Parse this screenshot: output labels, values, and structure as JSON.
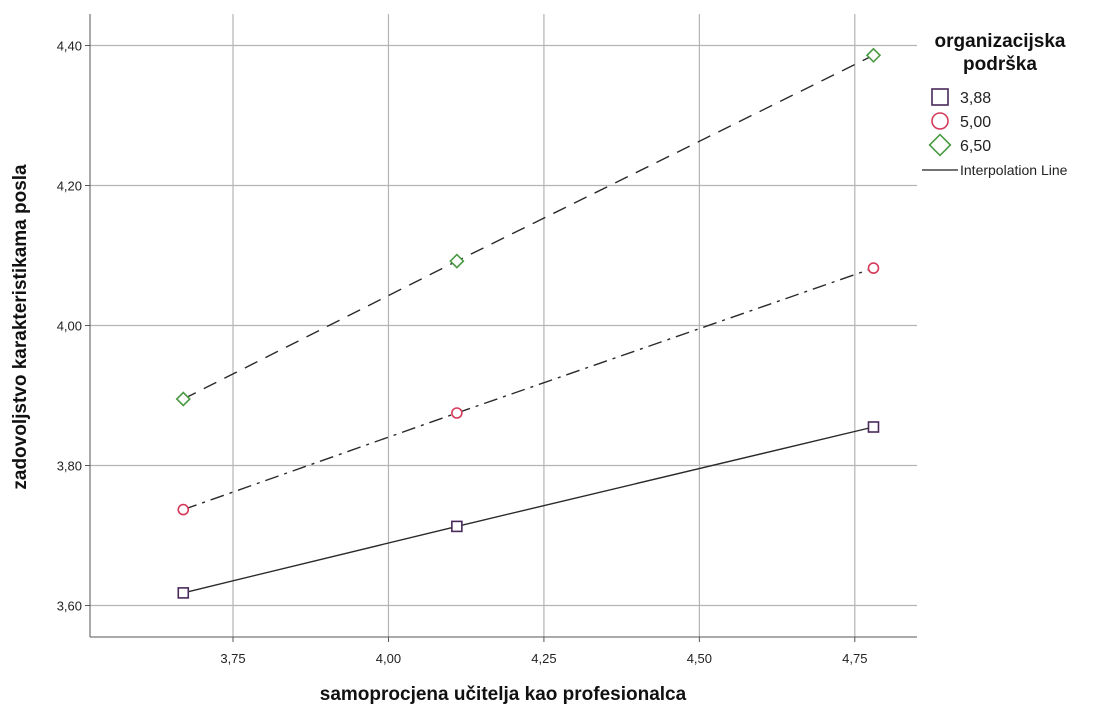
{
  "chart_data": {
    "type": "line",
    "xlabel": "samoprocjena učitelja kao profesionalca",
    "ylabel": "zadovoljstvo karakteristikama posla",
    "xlim": [
      3.52,
      4.85
    ],
    "ylim": [
      3.555,
      4.445
    ],
    "xticks": [
      3.75,
      4.0,
      4.25,
      4.5,
      4.75
    ],
    "xtick_labels": [
      "3,75",
      "4,00",
      "4,25",
      "4,50",
      "4,75"
    ],
    "yticks": [
      3.6,
      3.8,
      4.0,
      4.2,
      4.4
    ],
    "ytick_labels": [
      "3,60",
      "3,80",
      "4,00",
      "4,20",
      "4,40"
    ],
    "grid": true,
    "legend": {
      "title_lines": [
        "organizacijska",
        "podrška"
      ],
      "placement": "right",
      "interpolation_label": "Interpolation Line"
    },
    "x": [
      3.67,
      4.11,
      4.78
    ],
    "series": [
      {
        "name": "3,88",
        "marker": "square",
        "color": "#4a2a5a",
        "line": "solid",
        "values": [
          3.618,
          3.713,
          3.855
        ]
      },
      {
        "name": "5,00",
        "marker": "circle",
        "color": "#d63a5a",
        "line": "dashdot",
        "values": [
          3.737,
          3.875,
          4.082
        ]
      },
      {
        "name": "6,50",
        "marker": "diamond",
        "color": "#4a9a44",
        "line": "dashed",
        "values": [
          3.895,
          4.092,
          4.386
        ]
      }
    ]
  }
}
